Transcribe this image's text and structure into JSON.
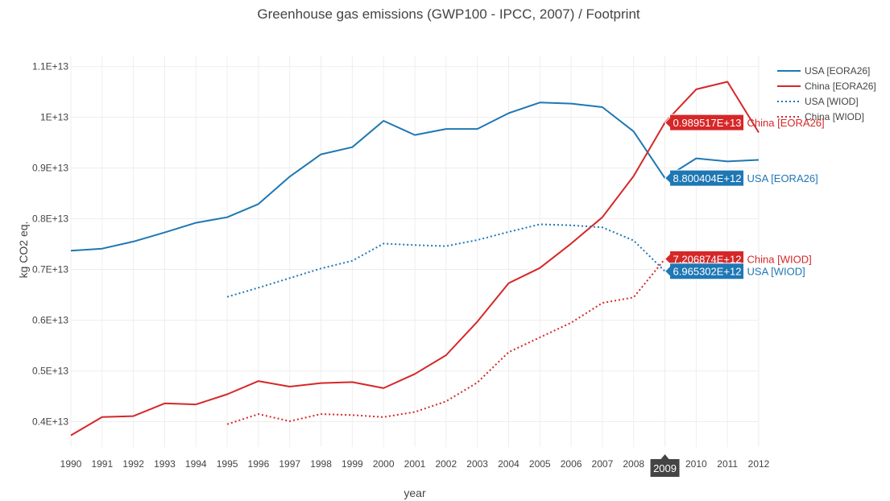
{
  "chart_data": {
    "type": "line",
    "title": "Greenhouse gas emissions (GWP100 - IPCC, 2007)  / Footprint",
    "xlabel": "year",
    "ylabel": "kg CO2 eq.",
    "xlim": [
      1990,
      2012
    ],
    "ylim": [
      3500000000000.0,
      11200000000000.0
    ],
    "grid": true,
    "legend_position": "top-right",
    "x": [
      1990,
      1991,
      1992,
      1993,
      1994,
      1995,
      1996,
      1997,
      1998,
      1999,
      2000,
      2001,
      2002,
      2003,
      2004,
      2005,
      2006,
      2007,
      2008,
      2009,
      2010,
      2011,
      2012
    ],
    "x_tick_labels": [
      "1990",
      "1991",
      "1992",
      "1993",
      "1994",
      "1995",
      "1996",
      "1997",
      "1998",
      "1999",
      "2000",
      "2001",
      "2002",
      "2003",
      "2004",
      "2005",
      "2006",
      "2007",
      "2008",
      "2009",
      "2010",
      "2011",
      "2012"
    ],
    "y_ticks": [
      4000000000000.0,
      5000000000000.0,
      6000000000000.0,
      7000000000000.0,
      8000000000000.0,
      9000000000000.0,
      10000000000000.0,
      11000000000000.0
    ],
    "y_tick_labels": [
      "0.4E+13",
      "0.5E+13",
      "0.6E+13",
      "0.7E+13",
      "0.8E+13",
      "0.9E+13",
      "1E+13",
      "1.1E+13"
    ],
    "series": [
      {
        "name": "USA [EORA26]",
        "color": "#1f77b4",
        "dash": "solid",
        "x": [
          1990,
          1991,
          1992,
          1993,
          1994,
          1995,
          1996,
          1997,
          1998,
          1999,
          2000,
          2001,
          2002,
          2003,
          2004,
          2005,
          2006,
          2007,
          2008,
          2009,
          2010,
          2011,
          2012
        ],
        "values": [
          7370000000000.0,
          7410000000000.0,
          7550000000000.0,
          7730000000000.0,
          7920000000000.0,
          8030000000000.0,
          8290000000000.0,
          8830000000000.0,
          9270000000000.0,
          9410000000000.0,
          9930000000000.0,
          9650000000000.0,
          9770000000000.0,
          9770000000000.0,
          10080000000000.0,
          10290000000000.0,
          10270000000000.0,
          10200000000000.0,
          9720000000000.0,
          8800404000000.0,
          9190000000000.0,
          9130000000000.0,
          9160000000000.0
        ]
      },
      {
        "name": "China [EORA26]",
        "color": "#d62728",
        "dash": "solid",
        "x": [
          1990,
          1991,
          1992,
          1993,
          1994,
          1995,
          1996,
          1997,
          1998,
          1999,
          2000,
          2001,
          2002,
          2003,
          2004,
          2005,
          2006,
          2007,
          2008,
          2009,
          2010,
          2011,
          2012
        ],
        "values": [
          3730000000000.0,
          4090000000000.0,
          4110000000000.0,
          4360000000000.0,
          4340000000000.0,
          4540000000000.0,
          4800000000000.0,
          4690000000000.0,
          4760000000000.0,
          4780000000000.0,
          4660000000000.0,
          4940000000000.0,
          5310000000000.0,
          5970000000000.0,
          6730000000000.0,
          7030000000000.0,
          7510000000000.0,
          8030000000000.0,
          8840000000000.0,
          9895170000000.0,
          10550000000000.0,
          10700000000000.0,
          9700000000000.0
        ]
      },
      {
        "name": "USA [WIOD]",
        "color": "#1f77b4",
        "dash": "dot",
        "x": [
          1995,
          1996,
          1997,
          1998,
          1999,
          2000,
          2001,
          2002,
          2003,
          2004,
          2005,
          2006,
          2007,
          2008,
          2009
        ],
        "values": [
          6460000000000.0,
          6640000000000.0,
          6830000000000.0,
          7020000000000.0,
          7170000000000.0,
          7510000000000.0,
          7480000000000.0,
          7460000000000.0,
          7580000000000.0,
          7740000000000.0,
          7890000000000.0,
          7870000000000.0,
          7830000000000.0,
          7570000000000.0,
          6965302000000.0
        ]
      },
      {
        "name": "China [WIOD]",
        "color": "#d62728",
        "dash": "dot",
        "x": [
          1995,
          1996,
          1997,
          1998,
          1999,
          2000,
          2001,
          2002,
          2003,
          2004,
          2005,
          2006,
          2007,
          2008,
          2009
        ],
        "values": [
          3950000000000.0,
          4150000000000.0,
          4010000000000.0,
          4150000000000.0,
          4130000000000.0,
          4090000000000.0,
          4190000000000.0,
          4400000000000.0,
          4770000000000.0,
          5370000000000.0,
          5660000000000.0,
          5950000000000.0,
          6340000000000.0,
          6450000000000.0,
          7206874000000.0
        ]
      }
    ],
    "hover": {
      "x_label": "2009",
      "labels": [
        {
          "series": 1,
          "value_text": "0.989517E+13",
          "name": "China [EORA26]"
        },
        {
          "series": 0,
          "value_text": "8.800404E+12",
          "name": "USA [EORA26]"
        },
        {
          "series": 3,
          "value_text": "7.206874E+12",
          "name": "China [WIOD]"
        },
        {
          "series": 2,
          "value_text": "6.965302E+12",
          "name": "USA [WIOD]"
        }
      ]
    }
  }
}
